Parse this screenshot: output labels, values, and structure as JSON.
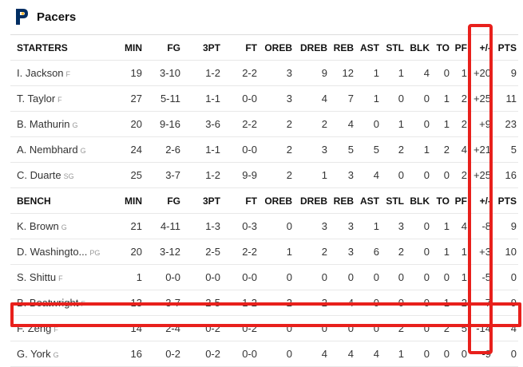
{
  "team": {
    "name": "Pacers",
    "logo_icon": "pacers-logo-icon",
    "logo_color": "#002d62",
    "accent_color": "#fdbb30"
  },
  "columns": [
    "MIN",
    "FG",
    "3PT",
    "FT",
    "OREB",
    "DREB",
    "REB",
    "AST",
    "STL",
    "BLK",
    "TO",
    "PF",
    "+/-",
    "PTS"
  ],
  "starters": {
    "label": "STARTERS",
    "rows": [
      {
        "name": "I. Jackson",
        "pos": "F",
        "stats": [
          "19",
          "3-10",
          "1-2",
          "2-2",
          "3",
          "9",
          "12",
          "1",
          "1",
          "4",
          "0",
          "1",
          "+20",
          "9"
        ]
      },
      {
        "name": "T. Taylor",
        "pos": "F",
        "stats": [
          "27",
          "5-11",
          "1-1",
          "0-0",
          "3",
          "4",
          "7",
          "1",
          "0",
          "0",
          "1",
          "2",
          "+25",
          "11"
        ]
      },
      {
        "name": "B. Mathurin",
        "pos": "G",
        "stats": [
          "20",
          "9-16",
          "3-6",
          "2-2",
          "2",
          "2",
          "4",
          "0",
          "1",
          "0",
          "1",
          "2",
          "+9",
          "23"
        ]
      },
      {
        "name": "A. Nembhard",
        "pos": "G",
        "stats": [
          "24",
          "2-6",
          "1-1",
          "0-0",
          "2",
          "3",
          "5",
          "5",
          "2",
          "1",
          "2",
          "4",
          "+21",
          "5"
        ]
      },
      {
        "name": "C. Duarte",
        "pos": "SG",
        "stats": [
          "25",
          "3-7",
          "1-2",
          "9-9",
          "2",
          "1",
          "3",
          "4",
          "0",
          "0",
          "0",
          "2",
          "+25",
          "16"
        ]
      }
    ]
  },
  "bench": {
    "label": "BENCH",
    "rows": [
      {
        "name": "K. Brown",
        "pos": "G",
        "stats": [
          "21",
          "4-11",
          "1-3",
          "0-3",
          "0",
          "3",
          "3",
          "1",
          "3",
          "0",
          "1",
          "4",
          "-8",
          "9"
        ]
      },
      {
        "name": "D. Washingto...",
        "pos": "PG",
        "stats": [
          "20",
          "3-12",
          "2-5",
          "2-2",
          "1",
          "2",
          "3",
          "6",
          "2",
          "0",
          "1",
          "1",
          "+3",
          "10"
        ]
      },
      {
        "name": "S. Shittu",
        "pos": "F",
        "stats": [
          "1",
          "0-0",
          "0-0",
          "0-0",
          "0",
          "0",
          "0",
          "0",
          "0",
          "0",
          "0",
          "1",
          "-5",
          "0"
        ]
      },
      {
        "name": "B. Boatwright",
        "pos": "F",
        "stats": [
          "13",
          "3-7",
          "2-5",
          "1-2",
          "2",
          "2",
          "4",
          "0",
          "0",
          "0",
          "1",
          "2",
          "-7",
          "9"
        ]
      },
      {
        "name": "F. Zeng",
        "pos": "F",
        "stats": [
          "14",
          "2-4",
          "0-2",
          "0-2",
          "0",
          "0",
          "0",
          "0",
          "2",
          "0",
          "2",
          "5",
          "-14",
          "4"
        ]
      },
      {
        "name": "G. York",
        "pos": "G",
        "stats": [
          "16",
          "0-2",
          "0-2",
          "0-0",
          "0",
          "4",
          "4",
          "4",
          "1",
          "0",
          "0",
          "0",
          "-9",
          "0"
        ]
      }
    ]
  },
  "highlight_color": "#e8201c"
}
